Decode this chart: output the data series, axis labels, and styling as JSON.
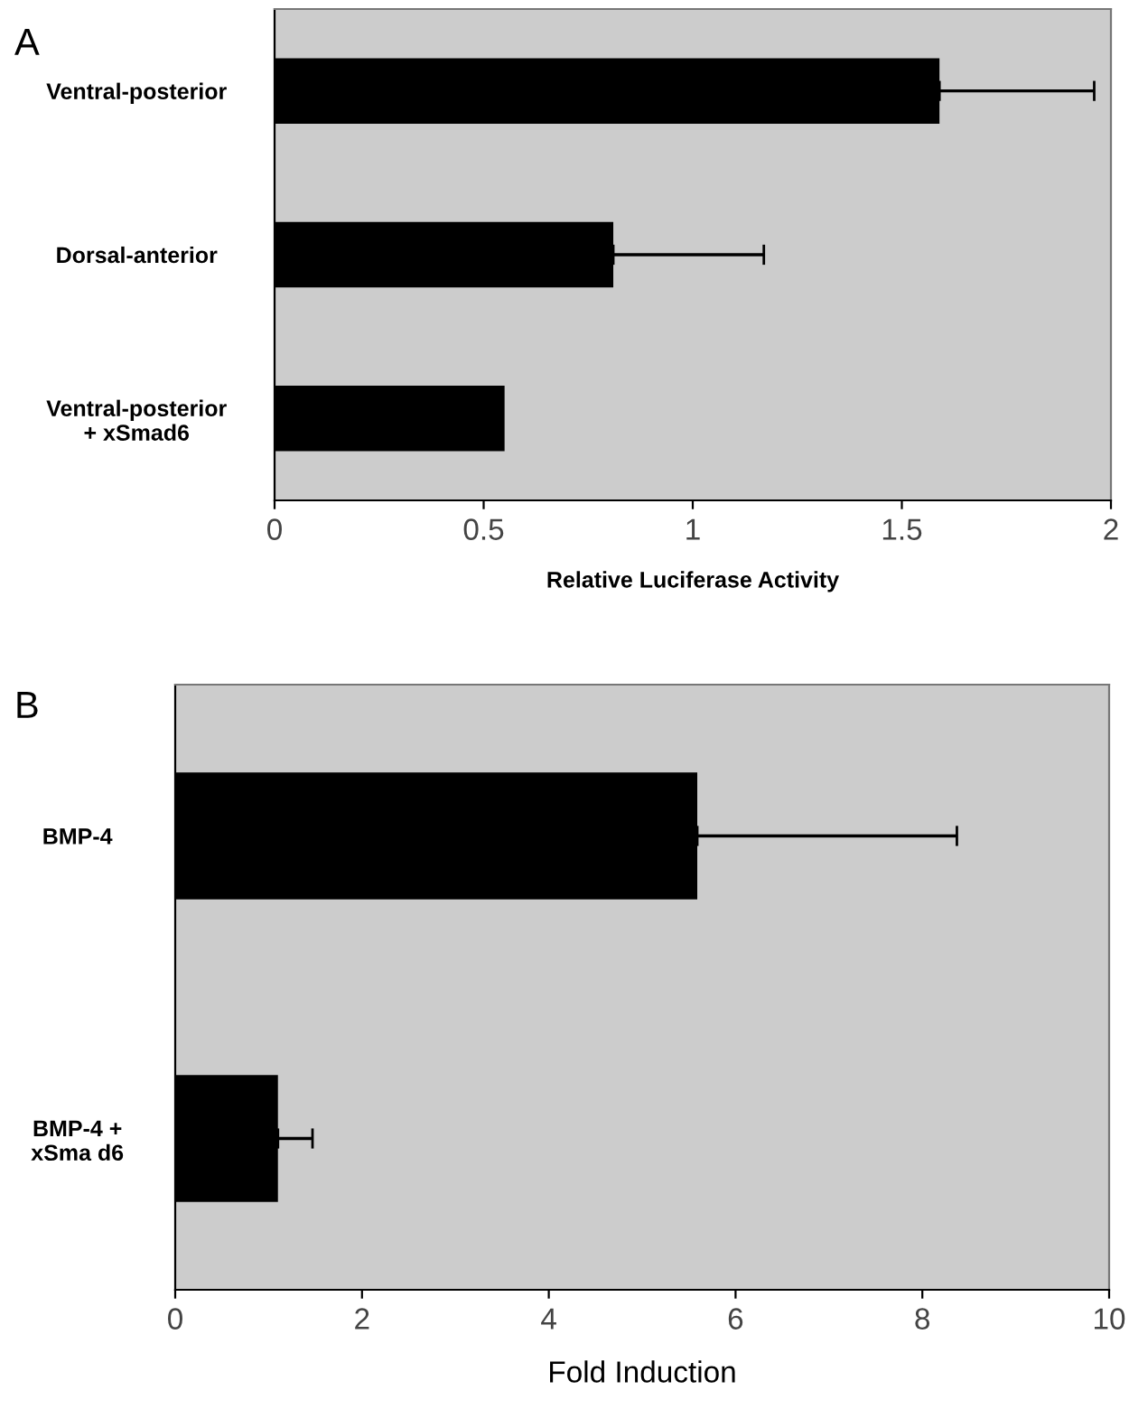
{
  "chart_data": [
    {
      "type": "bar",
      "title": "A",
      "orientation": "horizontal",
      "categories": [
        "Ventral-posterior",
        "Dorsal-anterior",
        "Ventral-posterior\n+ xSmad6"
      ],
      "values": [
        1.59,
        0.81,
        0.55
      ],
      "errors": [
        [
          1.59,
          1.96
        ],
        [
          0.81,
          1.17
        ],
        null
      ],
      "color": "#000000",
      "xlabel": "Relative Luciferase Activity",
      "xlim": [
        0,
        2
      ],
      "xticks": [
        0,
        0.5,
        1,
        1.5,
        2
      ],
      "grid": false,
      "legend": false
    },
    {
      "type": "bar",
      "title": "B",
      "orientation": "horizontal",
      "categories": [
        "BMP-4",
        "BMP-4 +\nxSma d6"
      ],
      "values": [
        5.59,
        1.1
      ],
      "errors": [
        [
          5.59,
          8.37
        ],
        [
          1.1,
          1.47
        ]
      ],
      "color": "#000000",
      "xlabel": "Fold Induction",
      "xlim": [
        0,
        10
      ],
      "xticks": [
        0,
        2,
        4,
        6,
        8,
        10
      ],
      "grid": false,
      "legend": false
    }
  ]
}
